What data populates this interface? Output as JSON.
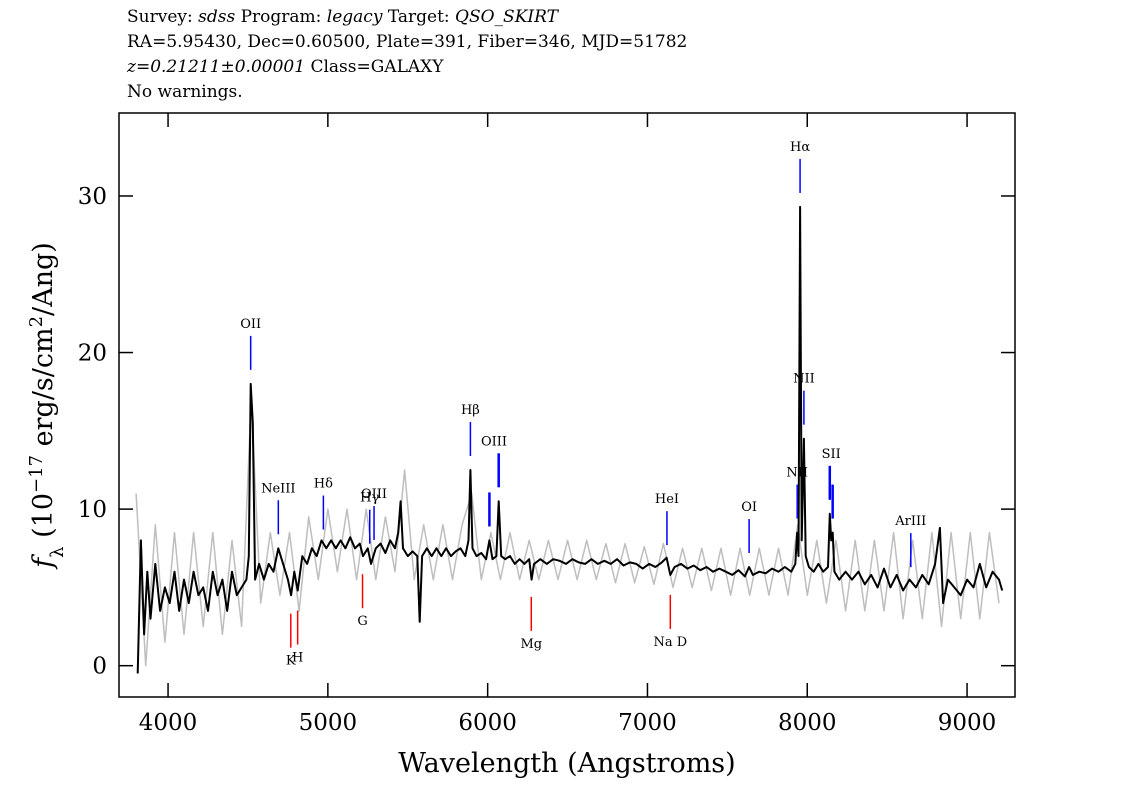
{
  "chart_data": {
    "type": "line",
    "header": [
      [
        {
          "text": "Survey: "
        },
        {
          "text": "sdss",
          "italic": true
        },
        {
          "text": " Program: "
        },
        {
          "text": "legacy",
          "italic": true
        },
        {
          "text": " Target: "
        },
        {
          "text": "QSO_SKIRT",
          "italic": true
        }
      ],
      [
        {
          "text": "RA=5.95430, Dec=0.60500, Plate=391, Fiber=346, MJD=51782"
        }
      ],
      [
        {
          "text": "z=0.21211±0.00001",
          "italic": true
        },
        {
          "text": " Class=GALAXY"
        }
      ],
      [
        {
          "text": "No warnings."
        }
      ]
    ],
    "x_label": "Wavelength (Angstroms)",
    "y_label": [
      {
        "text": "f",
        "italic": true
      },
      {
        "text": "λ",
        "shift": "sub"
      },
      {
        "text": " (10"
      },
      {
        "text": "−17",
        "shift": "super"
      },
      {
        "text": " erg/s/cm"
      },
      {
        "text": "2",
        "shift": "super"
      },
      {
        "text": "/Ang)"
      }
    ],
    "xlim": [
      3693,
      9300
    ],
    "ylim": [
      -2,
      35.3
    ],
    "xticks": [
      4000,
      5000,
      6000,
      7000,
      8000,
      9000
    ],
    "yticks": [
      0,
      10,
      20,
      30
    ],
    "series": [
      {
        "color": "#bebebe",
        "x": [
          3800,
          3860,
          3920,
          3980,
          4040,
          4100,
          4160,
          4220,
          4280,
          4340,
          4400,
          4460,
          4520,
          4580,
          4640,
          4700,
          4760,
          4820,
          4880,
          4940,
          5000,
          5060,
          5120,
          5180,
          5240,
          5300,
          5360,
          5420,
          5480,
          5540,
          5600,
          5660,
          5720,
          5780,
          5840,
          5900,
          5960,
          6020,
          6080,
          6140,
          6200,
          6260,
          6320,
          6380,
          6440,
          6500,
          6560,
          6620,
          6680,
          6740,
          6800,
          6860,
          6920,
          6980,
          7040,
          7100,
          7160,
          7220,
          7280,
          7340,
          7400,
          7460,
          7520,
          7580,
          7640,
          7700,
          7760,
          7820,
          7880,
          7940,
          8000,
          8060,
          8120,
          8180,
          8240,
          8300,
          8360,
          8420,
          8480,
          8540,
          8600,
          8660,
          8720,
          8780,
          8840,
          8900,
          8960,
          9020,
          9080,
          9140,
          9200
        ],
        "values": [
          11,
          0,
          9,
          1.5,
          8.5,
          2,
          8.5,
          2.5,
          8.5,
          2,
          8,
          2.5,
          17,
          4,
          8.5,
          4.5,
          8.5,
          3.5,
          9.5,
          5.5,
          10,
          6,
          10,
          5.5,
          10,
          5.5,
          9.5,
          6,
          12.5,
          5.5,
          9,
          5.5,
          9,
          5.5,
          9,
          11,
          5.5,
          8.5,
          5.5,
          8.5,
          5.5,
          8,
          5.5,
          8,
          5.5,
          8,
          5.5,
          8,
          5.5,
          7.8,
          5.3,
          7.8,
          5.3,
          7.6,
          5.2,
          7.8,
          5,
          7.5,
          5,
          7.5,
          4.8,
          7.5,
          4.5,
          7.5,
          4.5,
          7.5,
          4.5,
          7.5,
          4.5,
          9,
          4.5,
          8,
          4,
          8,
          3.5,
          8,
          3.5,
          8,
          3.5,
          8.5,
          3,
          8,
          3,
          8.5,
          2.5,
          8.5,
          3,
          8.5,
          3,
          8.5,
          4
        ]
      },
      {
        "color": "#000000",
        "x": [
          3810,
          3830,
          3850,
          3870,
          3890,
          3920,
          3950,
          3980,
          4010,
          4040,
          4070,
          4100,
          4130,
          4160,
          4190,
          4220,
          4250,
          4280,
          4310,
          4340,
          4370,
          4400,
          4430,
          4460,
          4490,
          4505,
          4517,
          4530,
          4545,
          4570,
          4600,
          4630,
          4660,
          4690,
          4720,
          4750,
          4770,
          4790,
          4811,
          4840,
          4870,
          4900,
          4930,
          4960,
          4990,
          5020,
          5050,
          5080,
          5110,
          5140,
          5170,
          5200,
          5220,
          5250,
          5270,
          5300,
          5330,
          5360,
          5390,
          5420,
          5440,
          5455,
          5470,
          5500,
          5530,
          5560,
          5575,
          5590,
          5620,
          5650,
          5680,
          5710,
          5740,
          5770,
          5800,
          5830,
          5860,
          5880,
          5892,
          5905,
          5930,
          5960,
          5990,
          6011,
          6030,
          6055,
          6069,
          6085,
          6110,
          6140,
          6170,
          6200,
          6230,
          6260,
          6275,
          6290,
          6330,
          6370,
          6410,
          6450,
          6490,
          6530,
          6570,
          6610,
          6650,
          6690,
          6730,
          6770,
          6810,
          6850,
          6890,
          6930,
          6970,
          7010,
          7050,
          7090,
          7120,
          7143,
          7170,
          7210,
          7250,
          7290,
          7330,
          7370,
          7410,
          7450,
          7490,
          7530,
          7570,
          7610,
          7636,
          7660,
          7700,
          7740,
          7780,
          7820,
          7860,
          7900,
          7925,
          7937,
          7945,
          7955,
          7965,
          7979,
          7990,
          8010,
          8040,
          8070,
          8100,
          8130,
          8141,
          8150,
          8159,
          8170,
          8200,
          8240,
          8280,
          8320,
          8360,
          8400,
          8440,
          8480,
          8520,
          8560,
          8600,
          8640,
          8680,
          8720,
          8760,
          8800,
          8830,
          8850,
          8880,
          8920,
          8960,
          9000,
          9040,
          9080,
          9120,
          9160,
          9200,
          9220
        ],
        "values": [
          -0.5,
          8,
          2,
          6,
          3,
          6.5,
          3.5,
          5,
          4,
          6,
          3.5,
          5.5,
          4,
          6,
          4.5,
          5,
          3.5,
          6,
          4.5,
          5.5,
          3.5,
          6,
          4.5,
          5,
          5.5,
          7,
          18,
          15.5,
          5.5,
          6.5,
          5.5,
          6.5,
          6,
          7.5,
          6.5,
          5.5,
          4.5,
          6,
          4.8,
          7,
          6.5,
          7.5,
          7,
          8,
          7.5,
          8,
          7.5,
          8,
          7.5,
          8.2,
          7.5,
          7.8,
          7,
          7.5,
          6.5,
          7.5,
          7.8,
          7.2,
          8,
          7.5,
          8.5,
          10.5,
          7.5,
          7,
          7.3,
          7,
          2.8,
          7,
          7.5,
          7,
          7.5,
          7,
          7.5,
          7,
          7.3,
          7.5,
          7,
          8,
          12.5,
          7.5,
          7,
          7.2,
          6.8,
          8,
          6.8,
          7,
          10.5,
          7,
          6.8,
          7,
          6.5,
          6.8,
          6.5,
          6.8,
          5.5,
          6.5,
          6.8,
          6.5,
          6.8,
          6.7,
          6.5,
          6.8,
          6.6,
          6.5,
          6.8,
          6.5,
          6.7,
          6.5,
          6.8,
          6.4,
          6.6,
          6.5,
          6.2,
          6.5,
          6.3,
          6.6,
          6.9,
          5.8,
          6.3,
          6.5,
          6.2,
          6.4,
          6.1,
          6.3,
          6,
          6.2,
          6,
          5.8,
          6.1,
          5.7,
          6.3,
          5.8,
          6,
          5.9,
          6.2,
          6,
          6.3,
          6,
          6.5,
          8.5,
          7,
          29.3,
          8,
          14.5,
          7,
          6.3,
          6,
          6.5,
          6,
          6.3,
          9.7,
          8,
          8.5,
          6,
          5.5,
          6,
          5.5,
          6,
          5.2,
          5.8,
          5,
          6.2,
          5,
          5.8,
          4.8,
          5.5,
          5,
          5.8,
          5.2,
          6.5,
          8.8,
          4,
          5.5,
          5,
          4.5,
          5.5,
          5,
          6.5,
          5,
          6,
          5.5,
          4.8
        ]
      }
    ],
    "emission_color": "#0000ff",
    "absorption_color": "#ff0000",
    "annotations": [
      {
        "label": "OII",
        "kind": "emission",
        "wavelengths": [
          4517
        ]
      },
      {
        "label": "NeIII",
        "kind": "emission",
        "wavelengths": [
          4690
        ]
      },
      {
        "label": "Hδ",
        "kind": "emission",
        "wavelengths": [
          4972
        ]
      },
      {
        "label": "Hγ",
        "kind": "emission",
        "wavelengths": [
          5262
        ]
      },
      {
        "label": "OIII",
        "kind": "emission",
        "wavelengths": [
          5289
        ]
      },
      {
        "label": "Hβ",
        "kind": "emission",
        "wavelengths": [
          5892
        ]
      },
      {
        "label": "OIII",
        "kind": "emission",
        "wavelengths": [
          6011,
          6069
        ]
      },
      {
        "label": "HeI",
        "kind": "emission",
        "wavelengths": [
          7122
        ]
      },
      {
        "label": "OI",
        "kind": "emission",
        "wavelengths": [
          7636
        ]
      },
      {
        "label": "NII",
        "kind": "emission",
        "wavelengths": [
          7937
        ]
      },
      {
        "label": "Hα",
        "kind": "emission",
        "wavelengths": [
          7955
        ]
      },
      {
        "label": "NII",
        "kind": "emission",
        "wavelengths": [
          7979
        ]
      },
      {
        "label": "SII",
        "kind": "emission",
        "wavelengths": [
          8141,
          8159
        ]
      },
      {
        "label": "ArIII",
        "kind": "emission",
        "wavelengths": [
          8648
        ]
      },
      {
        "label": "K",
        "kind": "absorption",
        "wavelengths": [
          4768
        ]
      },
      {
        "label": "H",
        "kind": "absorption",
        "wavelengths": [
          4811
        ]
      },
      {
        "label": "G",
        "kind": "absorption",
        "wavelengths": [
          5217
        ]
      },
      {
        "label": "Mg",
        "kind": "absorption",
        "wavelengths": [
          6273
        ]
      },
      {
        "label": "Na D",
        "kind": "absorption",
        "wavelengths": [
          7143
        ]
      }
    ]
  }
}
